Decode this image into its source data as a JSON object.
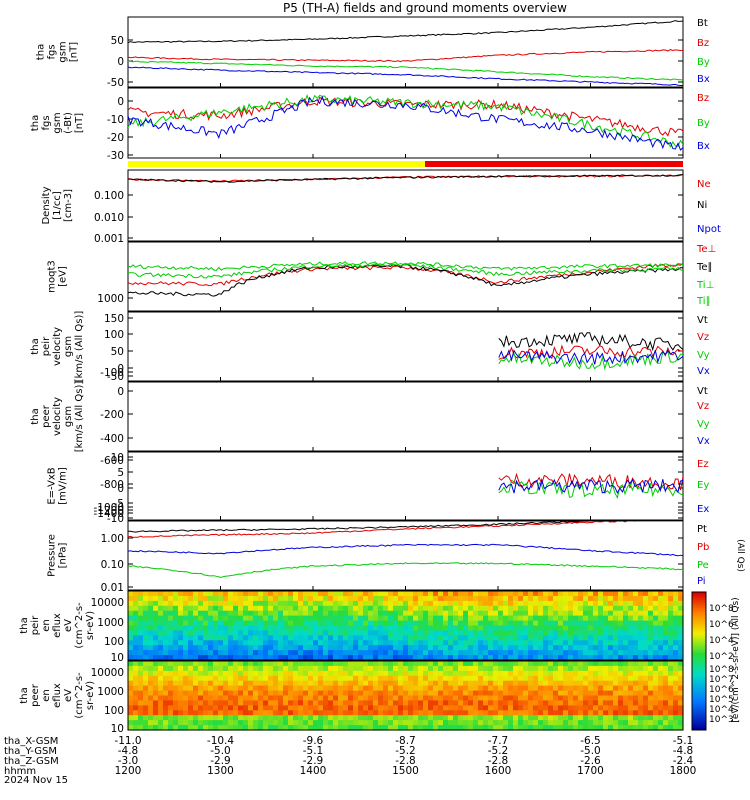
{
  "title": "P5 (TH-A) fields and ground moments overview",
  "colors": {
    "black": "#000000",
    "red": "#e00000",
    "green": "#00cc00",
    "blue": "#0000e0",
    "yellow": "#ffff00",
    "mode_red": "#ee0000"
  },
  "panels": [
    {
      "id": "fgs_bt",
      "ylabel_lines": [
        "tha",
        "fgs",
        "gsm",
        "[nT]"
      ],
      "ticks": [
        "50",
        "0",
        "-50"
      ],
      "legend": [
        {
          "text": "Bt",
          "color": "black"
        },
        {
          "text": "Bz",
          "color": "red"
        },
        {
          "text": "By",
          "color": "green"
        },
        {
          "text": "Bx",
          "color": "blue"
        }
      ]
    },
    {
      "id": "fgs_gsm",
      "ylabel_lines": [
        "tha",
        "fgs",
        "gsm",
        "(-Bt)",
        "[nT]"
      ],
      "ticks": [
        "0",
        "-10",
        "-20",
        "-30"
      ],
      "legend": [
        {
          "text": "Bz",
          "color": "red"
        },
        {
          "text": "By",
          "color": "green"
        },
        {
          "text": "Bx",
          "color": "blue"
        }
      ]
    },
    {
      "id": "density",
      "ylabel_lines": [
        "Density",
        "[1/cc]",
        "[cm-3]"
      ],
      "ticks": [
        "0.100",
        "0.010",
        "0.001"
      ],
      "legend": [
        {
          "text": "Ne",
          "color": "red"
        },
        {
          "text": "Ni",
          "color": "black"
        },
        {
          "text": "Npot",
          "color": "blue"
        }
      ]
    },
    {
      "id": "temp",
      "ylabel_lines": [
        "moqt3",
        "[eV]"
      ],
      "ticks": [
        "1000"
      ],
      "legend": [
        {
          "text": "Te⊥",
          "color": "red"
        },
        {
          "text": "Te∥",
          "color": "black"
        },
        {
          "text": "Ti⊥",
          "color": "green"
        },
        {
          "text": "Ti∥",
          "color": "green"
        }
      ]
    },
    {
      "id": "peir_vel",
      "ylabel_lines": [
        "tha",
        "peir",
        "velocity",
        "gsm",
        "[km/s (All Qs)]"
      ],
      "ticks": [
        "150",
        "100",
        "50",
        "0",
        "-50",
        "-100"
      ],
      "legend": [
        {
          "text": "Vt",
          "color": "black"
        },
        {
          "text": "Vz",
          "color": "red"
        },
        {
          "text": "Vy",
          "color": "green"
        },
        {
          "text": "Vx",
          "color": "blue"
        }
      ]
    },
    {
      "id": "peer_vel",
      "ylabel_lines": [
        "tha",
        "peer",
        "velocity",
        "gsm",
        "[km/s (All Qs)]"
      ],
      "ticks": [
        "0",
        "-200",
        "-400",
        "-600",
        "-800",
        "-1000",
        "-1200",
        "-1400"
      ],
      "legend": [
        {
          "text": "Vt",
          "color": "black"
        },
        {
          "text": "Vz",
          "color": "red"
        },
        {
          "text": "Vy",
          "color": "green"
        },
        {
          "text": "Vx",
          "color": "blue"
        }
      ]
    },
    {
      "id": "efield",
      "ylabel_lines": [
        "E=-VxB",
        "[mV/m]"
      ],
      "ticks": [
        "10",
        "5",
        "0",
        "-5",
        "-10"
      ],
      "legend": [
        {
          "text": "Ez",
          "color": "red"
        },
        {
          "text": "Ey",
          "color": "green"
        },
        {
          "text": "Ex",
          "color": "blue"
        }
      ]
    },
    {
      "id": "pressure",
      "ylabel_lines": [
        "Pressure",
        "[nPa]"
      ],
      "ticks": [
        "1.00",
        "0.10",
        "0.01"
      ],
      "legend": [
        {
          "text": "Pt",
          "color": "black"
        },
        {
          "text": "Pb",
          "color": "red"
        },
        {
          "text": "Pe",
          "color": "green"
        },
        {
          "text": "Pi",
          "color": "blue"
        }
      ],
      "side_note": "(All Qs)"
    },
    {
      "id": "peir_spec",
      "ylabel_lines": [
        "tha",
        "peir",
        "en",
        "eflux",
        "eV",
        "(cm^2-s-",
        "sr-eV)"
      ],
      "ticks": [
        "10000",
        "1000",
        "100",
        "10"
      ]
    },
    {
      "id": "peer_spec",
      "ylabel_lines": [
        "tha",
        "peer",
        "en",
        "eflux",
        "eV",
        "(cm^2-s-",
        "sr-eV)"
      ],
      "ticks": [
        "10000",
        "1000",
        "100",
        "10"
      ]
    }
  ],
  "colorbar": {
    "title": "[eV/(cm^2-s-sr-eV)] (All Qs)",
    "upper_ticks": [
      "10^8",
      "10^6",
      "10^4",
      "10^2"
    ],
    "lower_ticks": [
      "10^8",
      "10^7",
      "10^6",
      "10^5",
      "10^4",
      "10^3"
    ]
  },
  "axis_footer": {
    "row_labels": [
      "tha_X-GSM",
      "tha_Y-GSM",
      "tha_Z-GSM",
      "hhmm",
      "2024 Nov 15"
    ],
    "columns": [
      [
        "-11.0",
        "-4.8",
        "-3.0",
        "1200"
      ],
      [
        "-10.4",
        "-5.0",
        "-2.9",
        "1300"
      ],
      [
        "-9.6",
        "-5.1",
        "-2.9",
        "1400"
      ],
      [
        "-8.7",
        "-5.2",
        "-2.8",
        "1500"
      ],
      [
        "-7.7",
        "-5.2",
        "-2.8",
        "1600"
      ],
      [
        "-6.5",
        "-5.0",
        "-2.6",
        "1700"
      ],
      [
        "-5.1",
        "-4.8",
        "-2.4",
        "1800"
      ]
    ]
  },
  "chart_data": {
    "type": "line",
    "title": "P5 (TH-A) fields and ground moments overview",
    "x": [
      "1200",
      "1300",
      "1400",
      "1500",
      "1600",
      "1700",
      "1800"
    ],
    "x_date": "2024 Nov 15",
    "panels": [
      {
        "ylim": [
          -75,
          95
        ],
        "series": [
          {
            "name": "Bt",
            "values": [
              34,
              36,
              41,
              49,
              57,
              70,
              86
            ]
          },
          {
            "name": "Bz",
            "values": [
              -3,
              -8,
              -10,
              -12,
              2,
              10,
              15
            ]
          },
          {
            "name": "By",
            "values": [
              -13,
              -18,
              -24,
              -27,
              -38,
              -50,
              -58
            ]
          },
          {
            "name": "Bx",
            "values": [
              -27,
              -34,
              -40,
              -45,
              -55,
              -63,
              -70
            ]
          }
        ]
      },
      {
        "ylim": [
          -33,
          5
        ],
        "series": [
          {
            "name": "Bz",
            "values": [
              -8,
              -10,
              -2,
              -4,
              -4,
              -12,
              -20
            ]
          },
          {
            "name": "By",
            "values": [
              -15,
              -8,
              -1,
              -3,
              -5,
              -15,
              -26
            ]
          },
          {
            "name": "Bx",
            "values": [
              -12,
              -20,
              -2,
              -4,
              -12,
              -18,
              -28
            ]
          }
        ]
      },
      {
        "ylim": [
          0.0005,
          0.5
        ],
        "log": true,
        "series": [
          {
            "name": "Ne",
            "values": [
              0.2,
              0.17,
              0.2,
              0.25,
              0.27,
              0.27,
              0.3
            ]
          },
          {
            "name": "Ni",
            "values": [
              0.2,
              0.16,
              0.2,
              0.24,
              0.27,
              0.28,
              0.3
            ]
          }
        ]
      },
      {
        "ylim": [
          300,
          30000
        ],
        "log": true,
        "series": [
          {
            "name": "Te⊥",
            "values": [
              2000,
              1800,
              5000,
              5500,
              2000,
              4000,
              7000
            ]
          },
          {
            "name": "Te∥",
            "values": [
              1000,
              900,
              5500,
              6000,
              1500,
              3500,
              5000
            ]
          },
          {
            "name": "Ti⊥",
            "values": [
              6000,
              5000,
              7000,
              7500,
              5000,
              6000,
              6500
            ]
          },
          {
            "name": "Ti∥",
            "values": [
              3500,
              3000,
              6000,
              6500,
              3500,
              4500,
              5000
            ]
          }
        ]
      },
      {
        "ylim": [
          -110,
          165
        ],
        "series": [
          {
            "name": "Vt",
            "values": [
              null,
              null,
              null,
              null,
              45,
              60,
              30
            ]
          },
          {
            "name": "Vz",
            "values": [
              null,
              null,
              null,
              null,
              0,
              10,
              5
            ]
          },
          {
            "name": "Vy",
            "values": [
              null,
              null,
              null,
              null,
              -20,
              -40,
              -10
            ]
          },
          {
            "name": "Vx",
            "values": [
              null,
              null,
              null,
              null,
              -10,
              -20,
              -5
            ]
          }
        ]
      },
      {
        "ylim": [
          -1450,
          0
        ],
        "series": []
      },
      {
        "ylim": [
          -12,
          12
        ],
        "series": [
          {
            "name": "Ez",
            "values": [
              null,
              null,
              null,
              null,
              2,
              2,
              1
            ]
          },
          {
            "name": "Ey",
            "values": [
              null,
              null,
              null,
              null,
              0,
              -2,
              -1
            ]
          },
          {
            "name": "Ex",
            "values": [
              null,
              null,
              null,
              null,
              0,
              0,
              0
            ]
          }
        ]
      },
      {
        "ylim": [
          0.005,
          2
        ],
        "log": true,
        "series": [
          {
            "name": "Pt",
            "values": [
              0.8,
              0.9,
              1.0,
              1.2,
              1.5,
              2.0,
              2.4
            ]
          },
          {
            "name": "Pb",
            "values": [
              0.5,
              0.6,
              0.7,
              1.0,
              1.3,
              1.8,
              2.3
            ]
          },
          {
            "name": "Pe",
            "values": [
              0.04,
              0.015,
              0.04,
              0.05,
              0.05,
              0.04,
              0.03
            ]
          },
          {
            "name": "Pi",
            "values": [
              0.15,
              0.12,
              0.2,
              0.25,
              0.25,
              0.15,
              0.1
            ]
          }
        ]
      }
    ]
  }
}
